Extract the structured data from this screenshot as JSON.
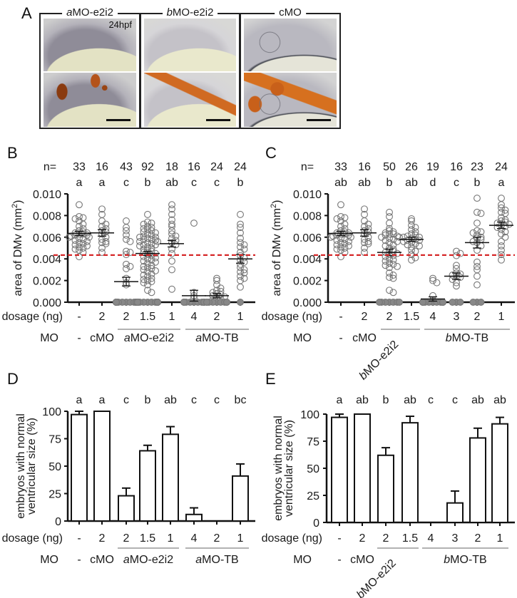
{
  "panels": {
    "A": {
      "letter": "A",
      "timepoint": "24hpf",
      "images": [
        {
          "caption_prefix": "a",
          "caption_rest": "MO-e2i2"
        },
        {
          "caption_prefix": "b",
          "caption_rest": "MO-e2i2"
        },
        {
          "caption_prefix": "",
          "caption_rest": "cMO"
        }
      ]
    },
    "B": {
      "letter": "B"
    },
    "C": {
      "letter": "C"
    },
    "D": {
      "letter": "D"
    },
    "E": {
      "letter": "E"
    }
  },
  "colors": {
    "threshold_line": "#d62728",
    "points": "#777777",
    "axis": "#111111"
  },
  "chart_data": [
    {
      "id": "B",
      "type": "scatter",
      "title": "",
      "ylabel": "area of DMv (mm2)",
      "ylim": [
        0,
        0.01
      ],
      "yticks": [
        "0.000",
        "0.002",
        "0.004",
        "0.006",
        "0.008",
        "0.010"
      ],
      "ytick_values": [
        0,
        0.002,
        0.004,
        0.006,
        0.008,
        0.01
      ],
      "n_label": "n=",
      "n": [
        "33",
        "16",
        "43",
        "92",
        "18",
        "16",
        "24",
        "24"
      ],
      "significance": [
        "a",
        "a",
        "c",
        "b",
        "ab",
        "c",
        "c",
        "b"
      ],
      "dosage_label": "dosage (ng)",
      "dosage": [
        "-",
        "2",
        "2",
        "1.5",
        "1",
        "4",
        "2",
        "1"
      ],
      "mo_label": "MO",
      "mo_groups": [
        {
          "label": "-",
          "span": [
            0,
            0
          ],
          "underline": false
        },
        {
          "label": "cMO",
          "span": [
            1,
            1
          ],
          "underline": false
        },
        {
          "prefix": "a",
          "label": "MO-e2i2",
          "span": [
            2,
            4
          ],
          "underline": true
        },
        {
          "prefix": "a",
          "label": "MO-TB",
          "span": [
            5,
            7
          ],
          "underline": true
        }
      ],
      "threshold": 0.00435,
      "means": [
        0.00635,
        0.0064,
        0.0019,
        0.0045,
        0.0054,
        0.0006,
        0.0006,
        0.004
      ],
      "sem": [
        0.0002,
        0.0003,
        0.0004,
        0.0002,
        0.0003,
        0.0005,
        0.0002,
        0.0004
      ],
      "series": [
        {
          "name": "-",
          "values": [
            0.009,
            0.0079,
            0.0078,
            0.0077,
            0.0075,
            0.0072,
            0.007,
            0.0068,
            0.0066,
            0.0065,
            0.0064,
            0.0064,
            0.0063,
            0.0063,
            0.0062,
            0.0062,
            0.0061,
            0.006,
            0.006,
            0.0059,
            0.0058,
            0.0057,
            0.0056,
            0.0055,
            0.0054,
            0.0053,
            0.0052,
            0.0051,
            0.005,
            0.0049,
            0.0048,
            0.0046,
            0.0042
          ]
        },
        {
          "name": "cMO 2",
          "values": [
            0.0086,
            0.0081,
            0.0075,
            0.0072,
            0.007,
            0.0068,
            0.0066,
            0.0065,
            0.0063,
            0.006,
            0.0058,
            0.0056,
            0.0055,
            0.0054,
            0.005,
            0.0046
          ]
        },
        {
          "name": "aMO-e2i2 2",
          "values": [
            0.0075,
            0.0069,
            0.0066,
            0.0062,
            0.0058,
            0.0056,
            0.0047,
            0.0046,
            0.0044,
            0.0035,
            0.0033,
            0.0031,
            0.0022,
            0.0018,
            0.0016,
            0,
            0,
            0,
            0,
            0,
            0,
            0,
            0,
            0,
            0,
            0,
            0,
            0,
            0,
            0,
            0,
            0,
            0,
            0,
            0,
            0,
            0,
            0,
            0,
            0,
            0,
            0,
            0
          ]
        },
        {
          "name": "aMO-e2i2 1.5",
          "values": [
            0.0081,
            0.0074,
            0.0073,
            0.0072,
            0.007,
            0.0069,
            0.0068,
            0.0067,
            0.0066,
            0.0065,
            0.0064,
            0.0063,
            0.0062,
            0.0061,
            0.006,
            0.006,
            0.0059,
            0.0058,
            0.0058,
            0.0057,
            0.0056,
            0.0056,
            0.0055,
            0.0054,
            0.0053,
            0.0053,
            0.0052,
            0.0051,
            0.005,
            0.0049,
            0.0048,
            0.0047,
            0.0046,
            0.0045,
            0.0044,
            0.0043,
            0.0042,
            0.0041,
            0.004,
            0.0039,
            0.0038,
            0.0037,
            0.0036,
            0.0034,
            0.0033,
            0.0032,
            0.0031,
            0.003,
            0.0029,
            0.0028,
            0.0026,
            0.0025,
            0.0024,
            0.0022,
            0.0021,
            0.002,
            0.0019,
            0.0018,
            0.0016,
            0.0011,
            0.0009,
            0,
            0,
            0,
            0,
            0,
            0,
            0,
            0,
            0,
            0,
            0,
            0,
            0,
            0,
            0,
            0,
            0,
            0,
            0,
            0,
            0,
            0,
            0,
            0,
            0,
            0,
            0,
            0,
            0,
            0,
            0
          ]
        },
        {
          "name": "aMO-e2i2 1",
          "values": [
            0.009,
            0.0086,
            0.0081,
            0.0076,
            0.0072,
            0.007,
            0.0066,
            0.0063,
            0.0061,
            0.0059,
            0.0057,
            0.0055,
            0.0053,
            0.0049,
            0.0045,
            0.0038,
            0.003,
            0.0012
          ]
        },
        {
          "name": "aMO-TB 4",
          "values": [
            0.0073,
            0.0009,
            0.0006,
            0.0004,
            0,
            0,
            0,
            0,
            0,
            0,
            0,
            0,
            0,
            0,
            0,
            0
          ]
        },
        {
          "name": "aMO-TB 2",
          "values": [
            0.0022,
            0.002,
            0.0016,
            0.0013,
            0.0011,
            0.001,
            0.0009,
            0.0008,
            0.0007,
            0.0006,
            0.0005,
            0.0004,
            0.0003,
            0.0002,
            0,
            0,
            0,
            0,
            0,
            0,
            0,
            0,
            0,
            0
          ]
        },
        {
          "name": "aMO-TB 1",
          "values": [
            0.0081,
            0.0072,
            0.0069,
            0.0064,
            0.0059,
            0.0055,
            0.0053,
            0.0051,
            0.0049,
            0.0046,
            0.0043,
            0.0041,
            0.0039,
            0.0037,
            0.0035,
            0.0032,
            0.003,
            0.0028,
            0.0027,
            0.0024,
            0.0022,
            0.002,
            0.0014,
            0
          ]
        }
      ]
    },
    {
      "id": "C",
      "type": "scatter",
      "ylabel": "area of DMv (mm2)",
      "ylim": [
        0,
        0.01
      ],
      "yticks": [
        "0.000",
        "0.002",
        "0.004",
        "0.006",
        "0.008",
        "0.010"
      ],
      "ytick_values": [
        0,
        0.002,
        0.004,
        0.006,
        0.008,
        0.01
      ],
      "n_label": "n=",
      "n": [
        "33",
        "16",
        "50",
        "26",
        "19",
        "16",
        "23",
        "24"
      ],
      "significance": [
        "ab",
        "ab",
        "b",
        "ab",
        "d",
        "c",
        "b",
        "a"
      ],
      "dosage_label": "dosage (ng)",
      "dosage": [
        "-",
        "2",
        "2",
        "1.5",
        "4",
        "3",
        "2",
        "1"
      ],
      "mo_label": "MO",
      "mo_groups": [
        {
          "label": "-",
          "span": [
            0,
            0
          ],
          "underline": false
        },
        {
          "label": "cMO",
          "span": [
            1,
            1
          ],
          "underline": false
        },
        {
          "prefix": "b",
          "label": "MO-e2i2",
          "span": [
            2,
            3
          ],
          "underline": true,
          "rotated": true
        },
        {
          "prefix": "b",
          "label": "MO-TB",
          "span": [
            4,
            7
          ],
          "underline": true
        }
      ],
      "threshold": 0.00435,
      "means": [
        0.00635,
        0.0064,
        0.0046,
        0.0058,
        0.0003,
        0.0024,
        0.0055,
        0.0071
      ],
      "sem": [
        0.0002,
        0.0003,
        0.0003,
        0.0002,
        0.0002,
        0.0003,
        0.0005,
        0.0003
      ],
      "series": [
        {
          "name": "-",
          "values": [
            0.009,
            0.0079,
            0.0078,
            0.0077,
            0.0075,
            0.0072,
            0.007,
            0.0068,
            0.0066,
            0.0065,
            0.0064,
            0.0064,
            0.0063,
            0.0063,
            0.0062,
            0.0062,
            0.0061,
            0.006,
            0.006,
            0.0059,
            0.0058,
            0.0057,
            0.0056,
            0.0055,
            0.0054,
            0.0053,
            0.0052,
            0.0051,
            0.005,
            0.0049,
            0.0048,
            0.0046,
            0.0042
          ]
        },
        {
          "name": "cMO 2",
          "values": [
            0.0086,
            0.0081,
            0.0075,
            0.0072,
            0.007,
            0.0068,
            0.0066,
            0.0065,
            0.0063,
            0.006,
            0.0058,
            0.0056,
            0.0055,
            0.0054,
            0.005,
            0.0046
          ]
        },
        {
          "name": "bMO-e2i2 2",
          "values": [
            0.0083,
            0.0079,
            0.0073,
            0.0068,
            0.0066,
            0.0065,
            0.0064,
            0.0063,
            0.0063,
            0.0062,
            0.0061,
            0.006,
            0.006,
            0.0059,
            0.0058,
            0.0057,
            0.0056,
            0.0055,
            0.0053,
            0.0052,
            0.005,
            0.0049,
            0.0048,
            0.0047,
            0.0046,
            0.0045,
            0.0044,
            0.0043,
            0.0042,
            0.004,
            0.0039,
            0.0038,
            0.0036,
            0.0035,
            0.0034,
            0.0033,
            0.0032,
            0.0027,
            0.0025,
            0.0023,
            0.0022,
            0.0011,
            0.0009,
            0,
            0,
            0,
            0,
            0,
            0,
            0
          ]
        },
        {
          "name": "bMO-e2i2 1.5",
          "values": [
            0.0077,
            0.0075,
            0.0071,
            0.0069,
            0.0067,
            0.0065,
            0.0063,
            0.0062,
            0.0061,
            0.006,
            0.006,
            0.0059,
            0.0058,
            0.0057,
            0.0057,
            0.0056,
            0.0055,
            0.0054,
            0.0053,
            0.0052,
            0.0051,
            0.0048,
            0.0047,
            0.0044,
            0.0041,
            0.0039
          ]
        },
        {
          "name": "bMO-TB 4",
          "values": [
            0.0022,
            0.002,
            0.0018,
            0.0006,
            0.0002,
            0,
            0,
            0,
            0,
            0,
            0,
            0,
            0,
            0,
            0,
            0,
            0,
            0,
            0
          ]
        },
        {
          "name": "bMO-TB 3",
          "values": [
            0.0047,
            0.0045,
            0.0043,
            0.0034,
            0.0031,
            0.0027,
            0.0026,
            0.0025,
            0.0024,
            0.0023,
            0.0021,
            0.0018,
            0.0015,
            0,
            0,
            0
          ]
        },
        {
          "name": "bMO-TB 2",
          "values": [
            0.0096,
            0.0083,
            0.0082,
            0.0073,
            0.0066,
            0.0065,
            0.0064,
            0.0062,
            0.006,
            0.0059,
            0.0058,
            0.0056,
            0.0055,
            0.0052,
            0.0048,
            0.0037,
            0.0033,
            0.003,
            0.0024,
            0.0016,
            0,
            0,
            0
          ]
        },
        {
          "name": "bMO-TB 1",
          "values": [
            0.0096,
            0.009,
            0.0087,
            0.0085,
            0.0083,
            0.0082,
            0.0078,
            0.0076,
            0.0075,
            0.0074,
            0.0073,
            0.0072,
            0.0071,
            0.007,
            0.0069,
            0.0067,
            0.0065,
            0.0063,
            0.006,
            0.0056,
            0.0052,
            0.0048,
            0.0044,
            0.0039
          ]
        }
      ]
    },
    {
      "id": "D",
      "type": "bar",
      "ylabel": "embryos with normal ventricular size (%)",
      "ylabel_lines": [
        "embryos with normal",
        "ventricular size (%)"
      ],
      "ylim": [
        0,
        100
      ],
      "yticks": [
        "0",
        "25",
        "50",
        "75",
        "100"
      ],
      "ytick_values": [
        0,
        25,
        50,
        75,
        100
      ],
      "significance": [
        "a",
        "a",
        "c",
        "b",
        "ab",
        "c",
        "c",
        "bc"
      ],
      "dosage_label": "dosage (ng)",
      "dosage": [
        "-",
        "2",
        "2",
        "1.5",
        "1",
        "4",
        "2",
        "1"
      ],
      "mo_label": "MO",
      "mo_groups": [
        {
          "label": "-",
          "span": [
            0,
            0
          ],
          "underline": false
        },
        {
          "label": "cMO",
          "span": [
            1,
            1
          ],
          "underline": false
        },
        {
          "prefix": "a",
          "label": "MO-e2i2",
          "span": [
            2,
            4
          ],
          "underline": true
        },
        {
          "prefix": "a",
          "label": "MO-TB",
          "span": [
            5,
            7
          ],
          "underline": true
        }
      ],
      "values": [
        97,
        100,
        23,
        64,
        79,
        6,
        0,
        41
      ],
      "errors": [
        3,
        0,
        7,
        5,
        7,
        6,
        0,
        11
      ]
    },
    {
      "id": "E",
      "type": "bar",
      "ylabel": "embryos with normal ventricular size (%)",
      "ylabel_lines": [
        "embryos with normal",
        "ventricular size (%)"
      ],
      "ylim": [
        0,
        100
      ],
      "yticks": [
        "0",
        "25",
        "50",
        "75",
        "100"
      ],
      "ytick_values": [
        0,
        25,
        50,
        75,
        100
      ],
      "significance": [
        "a",
        "ab",
        "b",
        "ab",
        "c",
        "c",
        "ab",
        "ab"
      ],
      "dosage_label": "dosage (ng)",
      "dosage": [
        "-",
        "2",
        "2",
        "1.5",
        "4",
        "3",
        "2",
        "1"
      ],
      "mo_label": "MO",
      "mo_groups": [
        {
          "label": "-",
          "span": [
            0,
            0
          ],
          "underline": false
        },
        {
          "label": "cMO",
          "span": [
            1,
            1
          ],
          "underline": false
        },
        {
          "prefix": "b",
          "label": "MO-e2i2",
          "span": [
            2,
            3
          ],
          "underline": true,
          "rotated": true
        },
        {
          "prefix": "b",
          "label": "MO-TB",
          "span": [
            4,
            7
          ],
          "underline": true
        }
      ],
      "values": [
        97,
        100,
        62,
        92,
        0,
        18,
        78,
        91
      ],
      "errors": [
        3,
        0,
        7,
        6,
        0,
        11,
        9,
        6
      ]
    }
  ]
}
